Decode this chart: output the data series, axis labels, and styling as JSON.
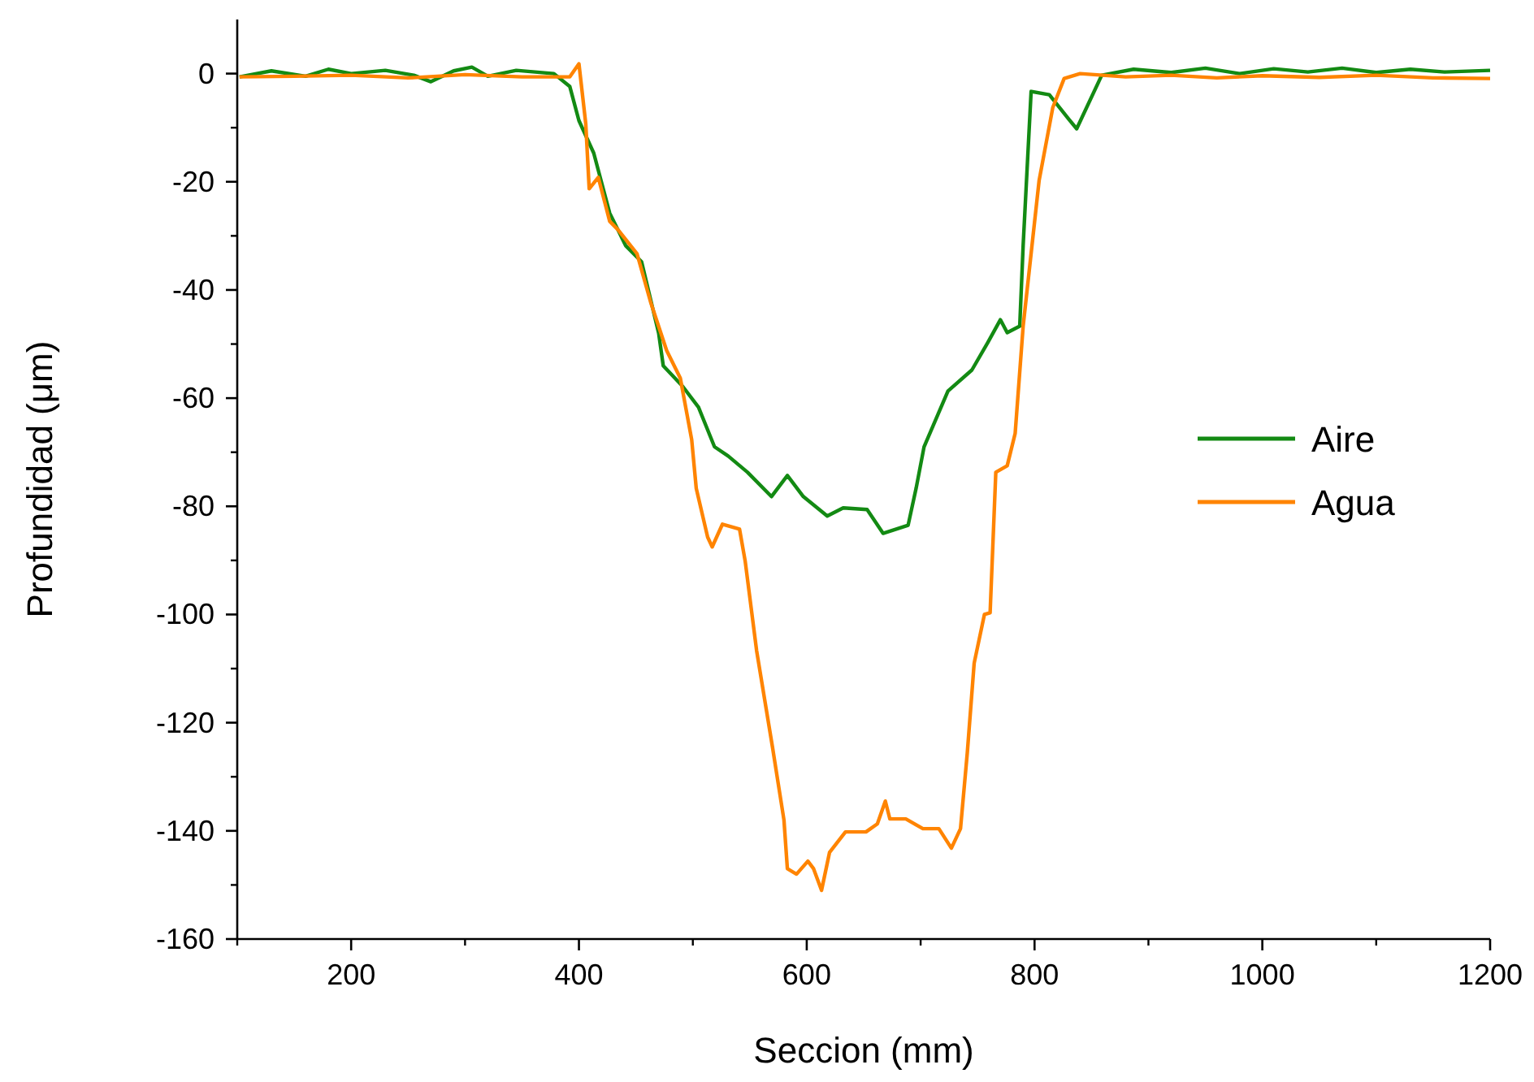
{
  "chart_data": {
    "type": "line",
    "xlabel": "Seccion (mm)",
    "ylabel": "Profundidad (μm)",
    "xlim": [
      100,
      1200
    ],
    "ylim": [
      -160,
      10
    ],
    "xticks": [
      200,
      400,
      600,
      800,
      1000,
      1200
    ],
    "yticks": [
      0,
      -20,
      -40,
      -60,
      -80,
      -100,
      -120,
      -140,
      -160
    ],
    "grid": false,
    "legend": "right",
    "line_style": "solid",
    "series": [
      {
        "name": "Aire",
        "color": "#138a13",
        "x": [
          102,
          130,
          160,
          180,
          200,
          230,
          255,
          270,
          290,
          306,
          320,
          345,
          378,
          392,
          400,
          413,
          427,
          441,
          455,
          470,
          474,
          491,
          505,
          519,
          531,
          548,
          569,
          583,
          597,
          618,
          632,
          653,
          667,
          689,
          696,
          703,
          724,
          745,
          759,
          770,
          776,
          787,
          790,
          797,
          813,
          830,
          837,
          859,
          887,
          920,
          950,
          980,
          1010,
          1040,
          1070,
          1100,
          1130,
          1160,
          1200
        ],
        "values": [
          -0.6,
          0.5,
          -0.5,
          0.8,
          0,
          0.6,
          -0.3,
          -1.5,
          0.5,
          1.2,
          -0.5,
          0.6,
          0,
          -2.4,
          -8.7,
          -14.7,
          -25.8,
          -31.8,
          -34.8,
          -48,
          -54,
          -57.8,
          -61.7,
          -69,
          -70.7,
          -73.7,
          -78.2,
          -74.3,
          -78.2,
          -81.8,
          -80.3,
          -80.6,
          -85,
          -83.5,
          -76.7,
          -69,
          -58.7,
          -54.8,
          -49.7,
          -45.5,
          -47.9,
          -46.7,
          -31.8,
          -3.3,
          -3.9,
          -8.4,
          -10.2,
          -0.3,
          0.8,
          0.2,
          1,
          0,
          0.9,
          0.3,
          1,
          0.2,
          0.8,
          0.3,
          0.6
        ]
      },
      {
        "name": "Agua",
        "color": "#ff8400",
        "x": [
          102,
          150,
          200,
          250,
          300,
          350,
          392,
          400,
          406,
          409,
          417,
          427,
          434,
          451,
          463,
          477,
          489,
          499,
          503,
          513,
          517,
          526,
          541,
          546,
          556,
          570,
          580,
          583,
          591,
          601,
          606,
          613,
          620,
          634,
          652,
          662,
          669,
          673,
          687,
          702,
          716,
          727,
          735,
          741,
          747,
          756,
          761,
          766,
          776,
          783,
          790,
          804,
          816,
          826,
          840,
          880,
          920,
          960,
          1000,
          1050,
          1100,
          1150,
          1200
        ],
        "values": [
          -0.6,
          -0.5,
          -0.3,
          -0.8,
          -0.2,
          -0.6,
          -0.6,
          1.8,
          -9.3,
          -21.3,
          -19.2,
          -27.3,
          -28.8,
          -33.3,
          -42.3,
          -51.2,
          -56.3,
          -67.7,
          -76.7,
          -85.7,
          -87.5,
          -83.3,
          -84.2,
          -90.2,
          -106.7,
          -124.6,
          -138,
          -147,
          -148,
          -145.6,
          -147,
          -151,
          -144,
          -140.2,
          -140.2,
          -138.7,
          -134.5,
          -137.8,
          -137.8,
          -139.6,
          -139.6,
          -143.2,
          -139.6,
          -125.5,
          -109,
          -100,
          -99.7,
          -73.7,
          -72.5,
          -66.5,
          -46.7,
          -19.8,
          -6.3,
          -0.9,
          0,
          -0.6,
          -0.3,
          -0.8,
          -0.4,
          -0.7,
          -0.3,
          -0.8,
          -0.9
        ]
      }
    ]
  }
}
